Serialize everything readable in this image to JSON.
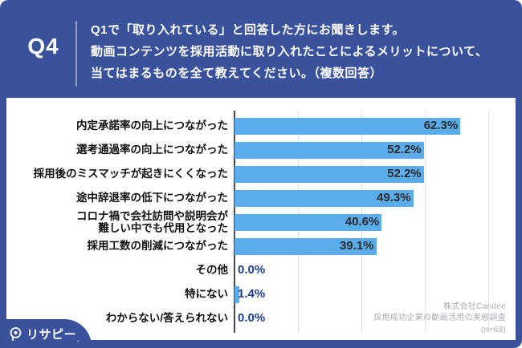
{
  "colors": {
    "blue": "#3A529B",
    "bar": "#5BACEA",
    "navy": "#1B3D91",
    "ink": "#2B2B2B",
    "grid": "#E1E1E1",
    "axis": "#4A4A4A",
    "muted": "#A9ADB5"
  },
  "header": {
    "badge": "Q4",
    "question_lines": [
      "Q1で「取り入れている」と回答した方にお聞きします。",
      "動画コンテンツを採用活動に取り入れたことによるメリットについて、",
      "当てはまるものを全て教えてください。（複数回答）"
    ]
  },
  "chart_data": {
    "type": "bar",
    "orientation": "horizontal",
    "categories": [
      "内定承諾率の向上につながった",
      "選考通過率の向上につながった",
      "採用後のミスマッチが起きにくくなった",
      "途中辞退率の低下につながった",
      "コロナ禍で会社訪問や説明会が\n難しい中でも代用となった",
      "採用工数の削減につながった",
      "その他",
      "特にない",
      "わからない/答えられない"
    ],
    "values": [
      62.3,
      52.2,
      52.2,
      49.3,
      40.6,
      39.1,
      0.0,
      1.4,
      0.0
    ],
    "value_labels": [
      "62.3%",
      "52.2%",
      "52.2%",
      "49.3%",
      "40.6%",
      "39.1%",
      "0.0%",
      "1.4%",
      "0.0%"
    ],
    "xlim": [
      0,
      70
    ],
    "grid_divisions": 4,
    "grid_on": true,
    "legend": "none",
    "title": "",
    "xlabel": "",
    "ylabel": ""
  },
  "footer": {
    "logo_icon": "magnifier-pin-icon",
    "logo_text": "リサピー",
    "logo_suffix": ".",
    "credit_lines": [
      "株式会社Candee",
      "採用成功企業の動画活用の実態調査",
      "(n=69)"
    ]
  }
}
